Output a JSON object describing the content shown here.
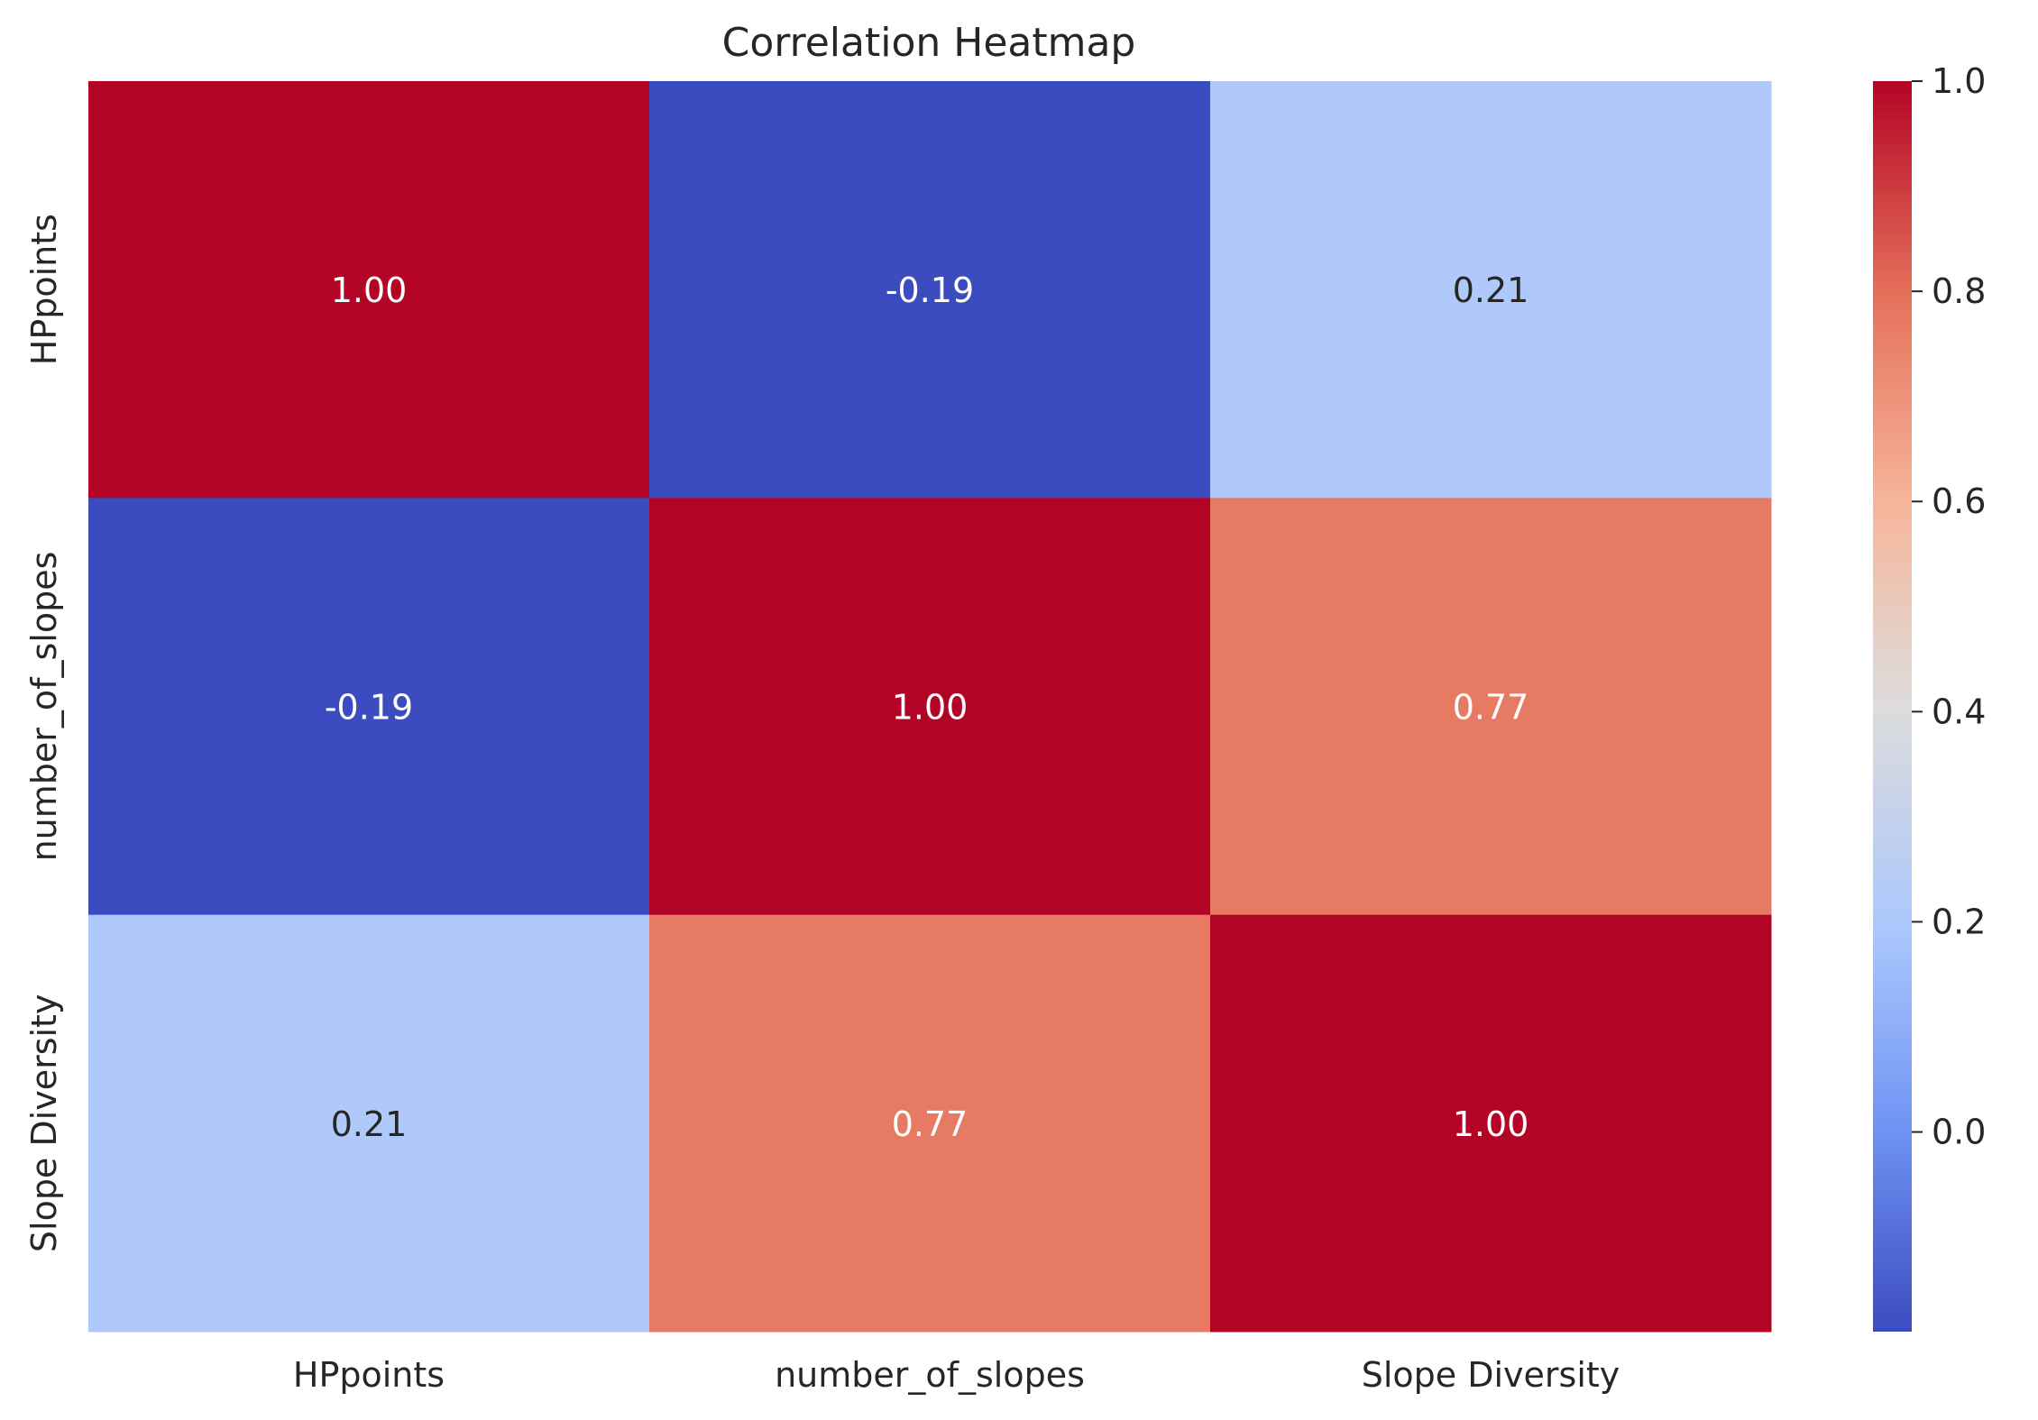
{
  "chart_data": {
    "type": "heatmap",
    "title": "Correlation Heatmap",
    "xlabel": "",
    "ylabel": "",
    "x_categories": [
      "HPpoints",
      "number_of_slopes",
      "Slope Diversity"
    ],
    "y_categories": [
      "HPpoints",
      "number_of_slopes",
      "Slope Diversity"
    ],
    "values": [
      [
        1.0,
        -0.19,
        0.21
      ],
      [
        -0.19,
        1.0,
        0.77
      ],
      [
        0.21,
        0.77,
        1.0
      ]
    ],
    "cell_labels": [
      [
        "1.00",
        "-0.19",
        "0.21"
      ],
      [
        "-0.19",
        "1.00",
        "0.77"
      ],
      [
        "0.21",
        "0.77",
        "1.00"
      ]
    ],
    "colormap": "coolwarm",
    "color_range": [
      -0.19,
      1.0
    ],
    "colorbar_ticks": [
      0.0,
      0.2,
      0.4,
      0.6,
      0.8,
      1.0
    ],
    "colorbar_tick_labels": [
      "0.0",
      "0.2",
      "0.4",
      "0.6",
      "0.8",
      "1.0"
    ],
    "grid": false,
    "colorbar_position": "right"
  }
}
